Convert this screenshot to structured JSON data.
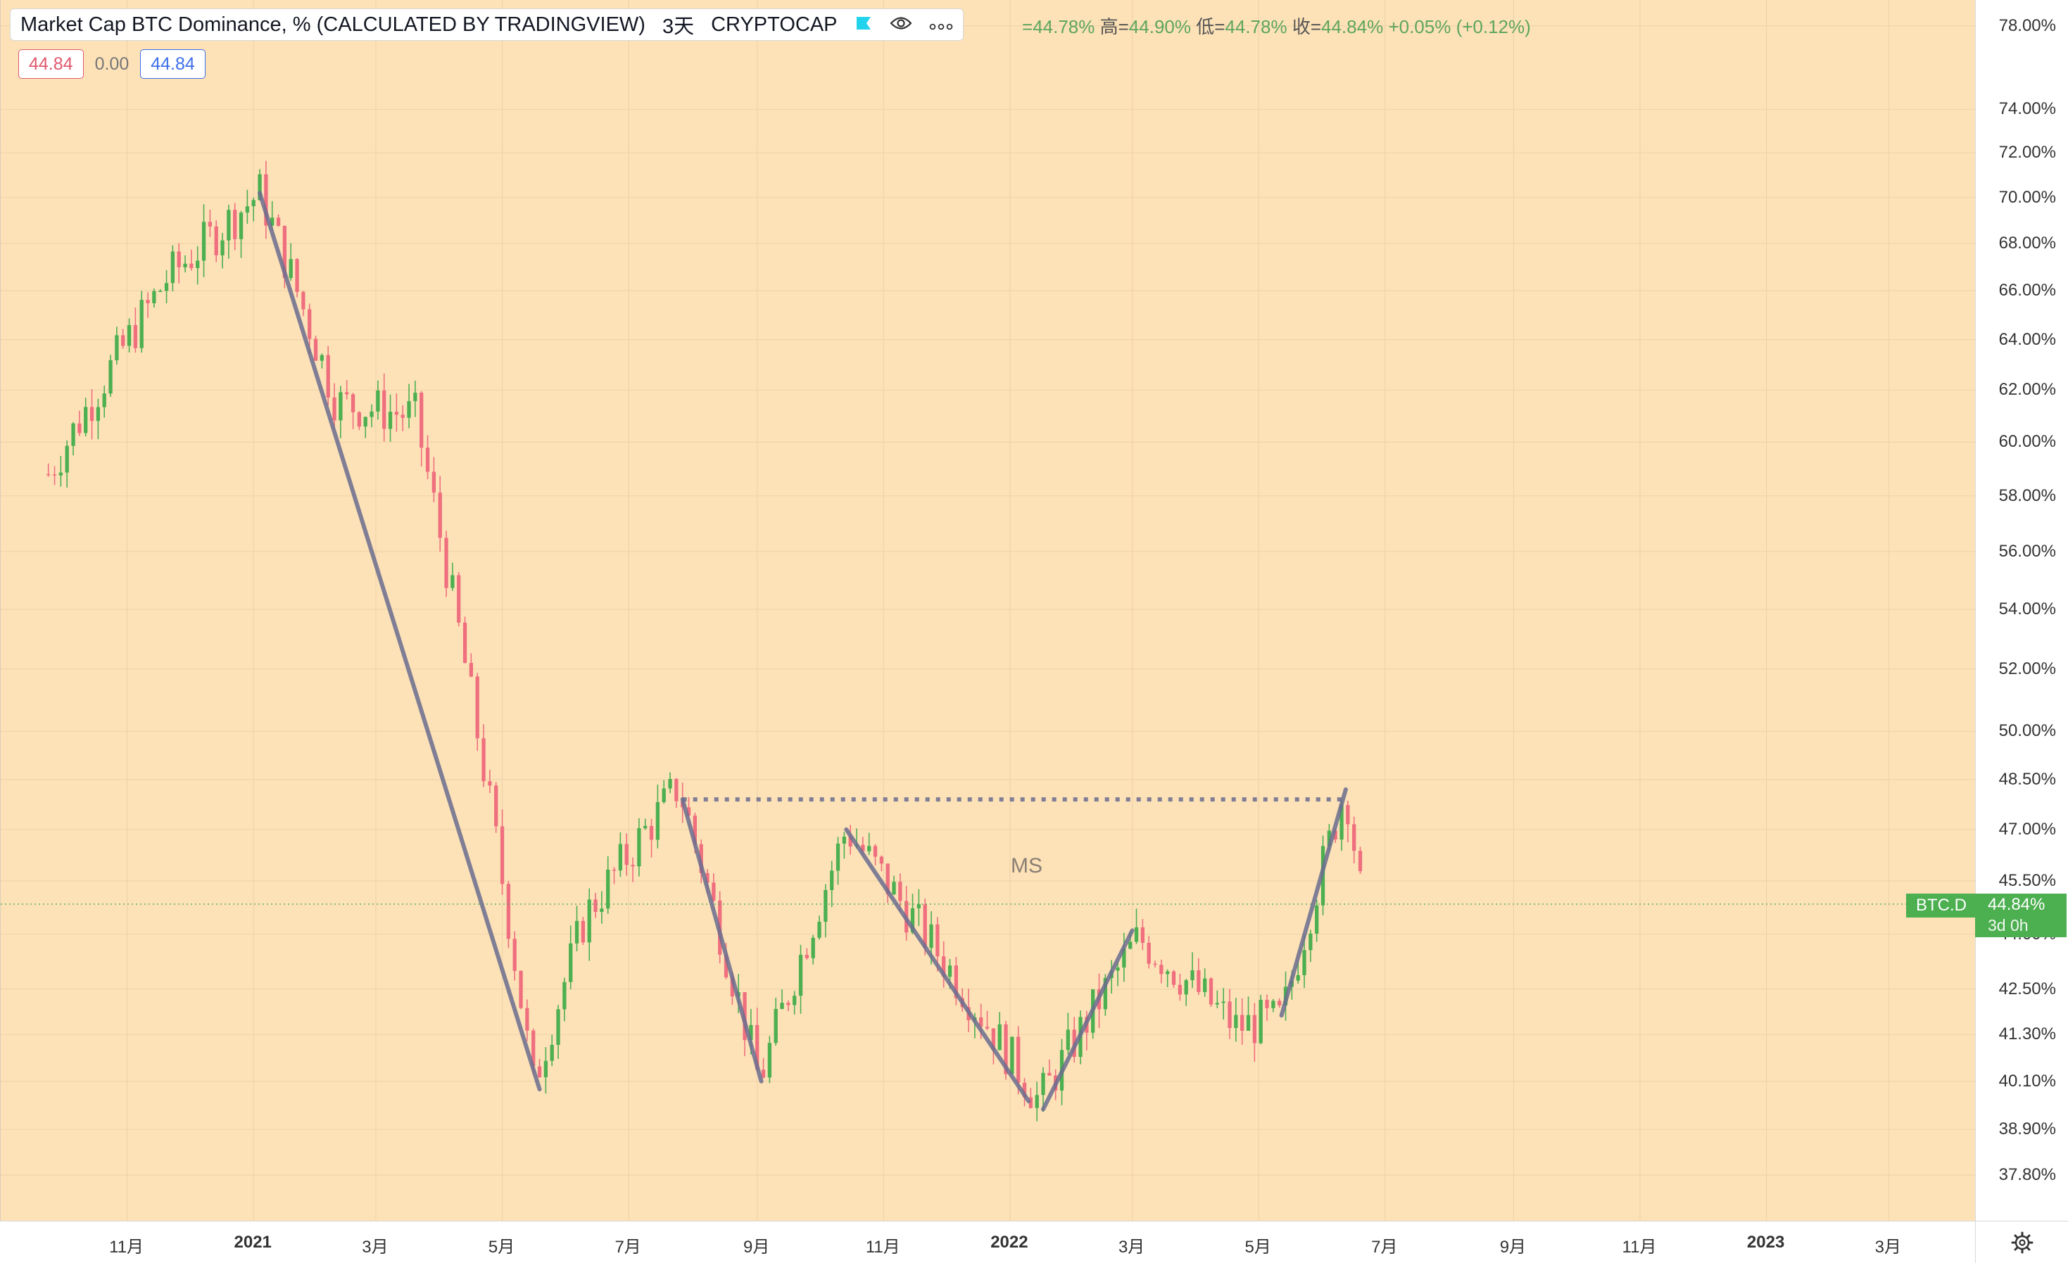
{
  "header": {
    "title": "Market Cap BTC Dominance, % (CALCULATED BY TRADINGVIEW)",
    "interval": "3天",
    "exchange": "CRYPTOCAP",
    "icons": [
      "flag-icon",
      "eye-icon",
      "more-icon"
    ]
  },
  "ohlc": {
    "open_key": "=",
    "open": "44.78%",
    "high_key": "高=",
    "high": "44.90%",
    "low_key": "低=",
    "low": "44.78%",
    "close_key": "收=",
    "close": "44.84%",
    "change": "+0.05% (+0.12%)"
  },
  "values": {
    "primary": "44.84",
    "diff": "0.00",
    "secondary": "44.84"
  },
  "price_axis": {
    "ticks": [
      "78.00%",
      "74.00%",
      "72.00%",
      "70.00%",
      "68.00%",
      "66.00%",
      "64.00%",
      "62.00%",
      "60.00%",
      "58.00%",
      "56.00%",
      "54.00%",
      "52.00%",
      "50.00%",
      "48.50%",
      "47.00%",
      "45.50%",
      "44.00%",
      "42.50%",
      "41.30%",
      "40.10%",
      "38.90%",
      "37.80%"
    ]
  },
  "time_axis": {
    "labels": [
      "11月",
      "2021",
      "3月",
      "5月",
      "7月",
      "9月",
      "11月",
      "2022",
      "3月",
      "5月",
      "7月",
      "9月",
      "11月",
      "2023",
      "3月"
    ]
  },
  "symbol_tag": "BTC.D",
  "last_price": {
    "price": "44.84%",
    "countdown": "3d 0h"
  },
  "annotation": {
    "label": "MS"
  },
  "colors": {
    "background": "#fde2b8",
    "up": "#4caf50",
    "down": "#ef6f7e",
    "drawing": "#6b6d8f"
  },
  "chart_data": {
    "type": "candlestick",
    "title": "Market Cap BTC Dominance, % (CALCULATED BY TRADINGVIEW)",
    "y_scale": "log",
    "ylim": [
      37.3,
      79.0
    ],
    "x_range": [
      "2020-09",
      "2023-04"
    ],
    "last_close": 44.84,
    "key_points": [
      {
        "date": "2020-09-24",
        "value": 58.8
      },
      {
        "date": "2020-11-20",
        "value": 66.5
      },
      {
        "date": "2021-01-04",
        "value": 70.2
      },
      {
        "date": "2021-02-10",
        "value": 61.5
      },
      {
        "date": "2021-03-20",
        "value": 61.0
      },
      {
        "date": "2021-05-16",
        "value": 40.0
      },
      {
        "date": "2021-06-10",
        "value": 44.5
      },
      {
        "date": "2021-07-25",
        "value": 48.3
      },
      {
        "date": "2021-09-02",
        "value": 40.1
      },
      {
        "date": "2021-10-14",
        "value": 47.0
      },
      {
        "date": "2022-01-15",
        "value": 39.6
      },
      {
        "date": "2022-03-04",
        "value": 43.9
      },
      {
        "date": "2022-04-20",
        "value": 41.5
      },
      {
        "date": "2022-05-12",
        "value": 41.7
      },
      {
        "date": "2022-06-12",
        "value": 48.3
      },
      {
        "date": "2022-06-20",
        "value": 44.84
      }
    ],
    "drawings": {
      "trend_lines": [
        [
          {
            "date": "2021-01-04",
            "value": 70.2
          },
          {
            "date": "2021-05-19",
            "value": 39.9
          }
        ],
        [
          {
            "date": "2021-07-27",
            "value": 47.9
          },
          {
            "date": "2021-09-03",
            "value": 40.1
          }
        ],
        [
          {
            "date": "2021-10-14",
            "value": 47.0
          },
          {
            "date": "2022-01-10",
            "value": 39.6
          }
        ],
        [
          {
            "date": "2022-01-17",
            "value": 39.4
          },
          {
            "date": "2022-03-01",
            "value": 44.1
          }
        ],
        [
          {
            "date": "2022-05-12",
            "value": 41.8
          },
          {
            "date": "2022-06-12",
            "value": 48.2
          }
        ]
      ],
      "dotted_level": {
        "value": 47.9,
        "from": "2021-07-27",
        "to": "2022-06-10"
      }
    }
  }
}
